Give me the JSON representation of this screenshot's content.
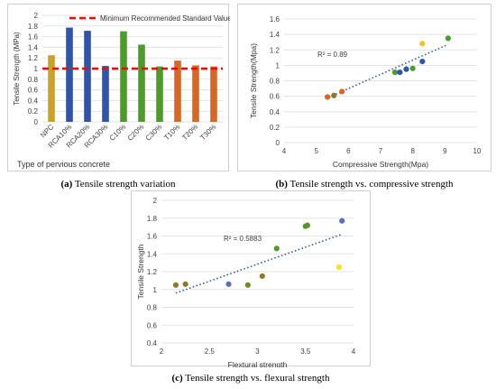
{
  "captions": {
    "a": {
      "letter": "(a)",
      "text": "Tensile strength variation"
    },
    "b": {
      "letter": "(b)",
      "text": "Tensile strength vs. compressive strength"
    },
    "c": {
      "letter": "(c)",
      "text": "Tensile strength vs. flexural strength"
    }
  },
  "chart_data": [
    {
      "type": "bar",
      "legend": {
        "entries": [
          "Minimum Recommended Standard Value"
        ],
        "position": "top"
      },
      "categories": [
        "NPC",
        "RCA10%",
        "RCA20%",
        "RCA30%",
        "C10%",
        "C20%",
        "C30%",
        "T10%",
        "T20%",
        "T30%"
      ],
      "values": [
        1.25,
        1.77,
        1.71,
        1.05,
        1.7,
        1.45,
        1.04,
        1.15,
        1.06,
        1.04
      ],
      "bar_colors": [
        "#C9A227",
        "#2F55A4",
        "#2F55A4",
        "#2F55A4",
        "#4E9A2E",
        "#4E9A2E",
        "#4E9A2E",
        "#D2692A",
        "#D2692A",
        "#D2692A"
      ],
      "reference_line": {
        "value": 1.0,
        "color": "#FF0000",
        "style": "dashed"
      },
      "xlabel": "Type of pervious concrete",
      "ylabel": "Tensile Strength (MPa)",
      "ylim": [
        0,
        2
      ],
      "yticks": [
        "0",
        "0.2",
        "0.4",
        "0.6",
        "0.8",
        "1",
        "1.2",
        "1.4",
        "1.6",
        "1.8",
        "2"
      ],
      "grid": true
    },
    {
      "type": "scatter",
      "points": [
        {
          "x": 5.35,
          "y": 0.59,
          "color": "#D2692A"
        },
        {
          "x": 5.55,
          "y": 0.61,
          "color": "#8C7A2B"
        },
        {
          "x": 5.8,
          "y": 0.66,
          "color": "#D2692A"
        },
        {
          "x": 7.45,
          "y": 0.91,
          "color": "#4E9A2E"
        },
        {
          "x": 7.6,
          "y": 0.91,
          "color": "#2F55A4"
        },
        {
          "x": 7.8,
          "y": 0.95,
          "color": "#2F55A4"
        },
        {
          "x": 8.0,
          "y": 0.96,
          "color": "#4E9A2E"
        },
        {
          "x": 8.3,
          "y": 1.05,
          "color": "#2F55A4"
        },
        {
          "x": 8.3,
          "y": 1.28,
          "color": "#F2C12E"
        },
        {
          "x": 9.1,
          "y": 1.35,
          "color": "#4E9A2E"
        }
      ],
      "trendline": {
        "type": "linear",
        "x_range": [
          5.3,
          9.1
        ],
        "y_range": [
          0.57,
          1.27
        ],
        "label": "R² = 0.89"
      },
      "xlabel": "Compressive Strength(Mpa)",
      "ylabel": "Tensile Strength(Mpa)",
      "xlim": [
        4,
        10
      ],
      "ylim": [
        0,
        1.6
      ],
      "xticks": [
        "4",
        "5",
        "6",
        "7",
        "8",
        "9",
        "10"
      ],
      "yticks": [
        "0",
        "0.2",
        "0.4",
        "0.6",
        "0.8",
        "1",
        "1.2",
        "1.4",
        "1.6"
      ],
      "grid": true
    },
    {
      "type": "scatter",
      "points": [
        {
          "x": 2.15,
          "y": 1.05,
          "color": "#8C7A2B"
        },
        {
          "x": 2.25,
          "y": 1.06,
          "color": "#8C7A2B"
        },
        {
          "x": 2.7,
          "y": 1.06,
          "color": "#5B6FB8"
        },
        {
          "x": 2.9,
          "y": 1.05,
          "color": "#6E8A2B"
        },
        {
          "x": 3.05,
          "y": 1.15,
          "color": "#8C7A2B"
        },
        {
          "x": 3.2,
          "y": 1.46,
          "color": "#4E9A2E"
        },
        {
          "x": 3.5,
          "y": 1.71,
          "color": "#4E9A2E"
        },
        {
          "x": 3.52,
          "y": 1.72,
          "color": "#6E8A2B"
        },
        {
          "x": 3.85,
          "y": 1.25,
          "color": "#F2E51E"
        },
        {
          "x": 3.88,
          "y": 1.77,
          "color": "#5B6FB8"
        }
      ],
      "trendline": {
        "type": "linear",
        "x_range": [
          2.15,
          3.88
        ],
        "y_range": [
          0.96,
          1.62
        ],
        "label": "R² = 0.5883"
      },
      "xlabel": "Flextural strength",
      "ylabel": "Tensile Strength",
      "xlim": [
        2,
        4
      ],
      "ylim": [
        0.4,
        2
      ],
      "xticks": [
        "2",
        "2.5",
        "3",
        "3.5",
        "4"
      ],
      "yticks": [
        "0.4",
        "0.6",
        "0.8",
        "1",
        "1.2",
        "1.4",
        "1.6",
        "1.8",
        "2"
      ],
      "grid": true
    }
  ]
}
